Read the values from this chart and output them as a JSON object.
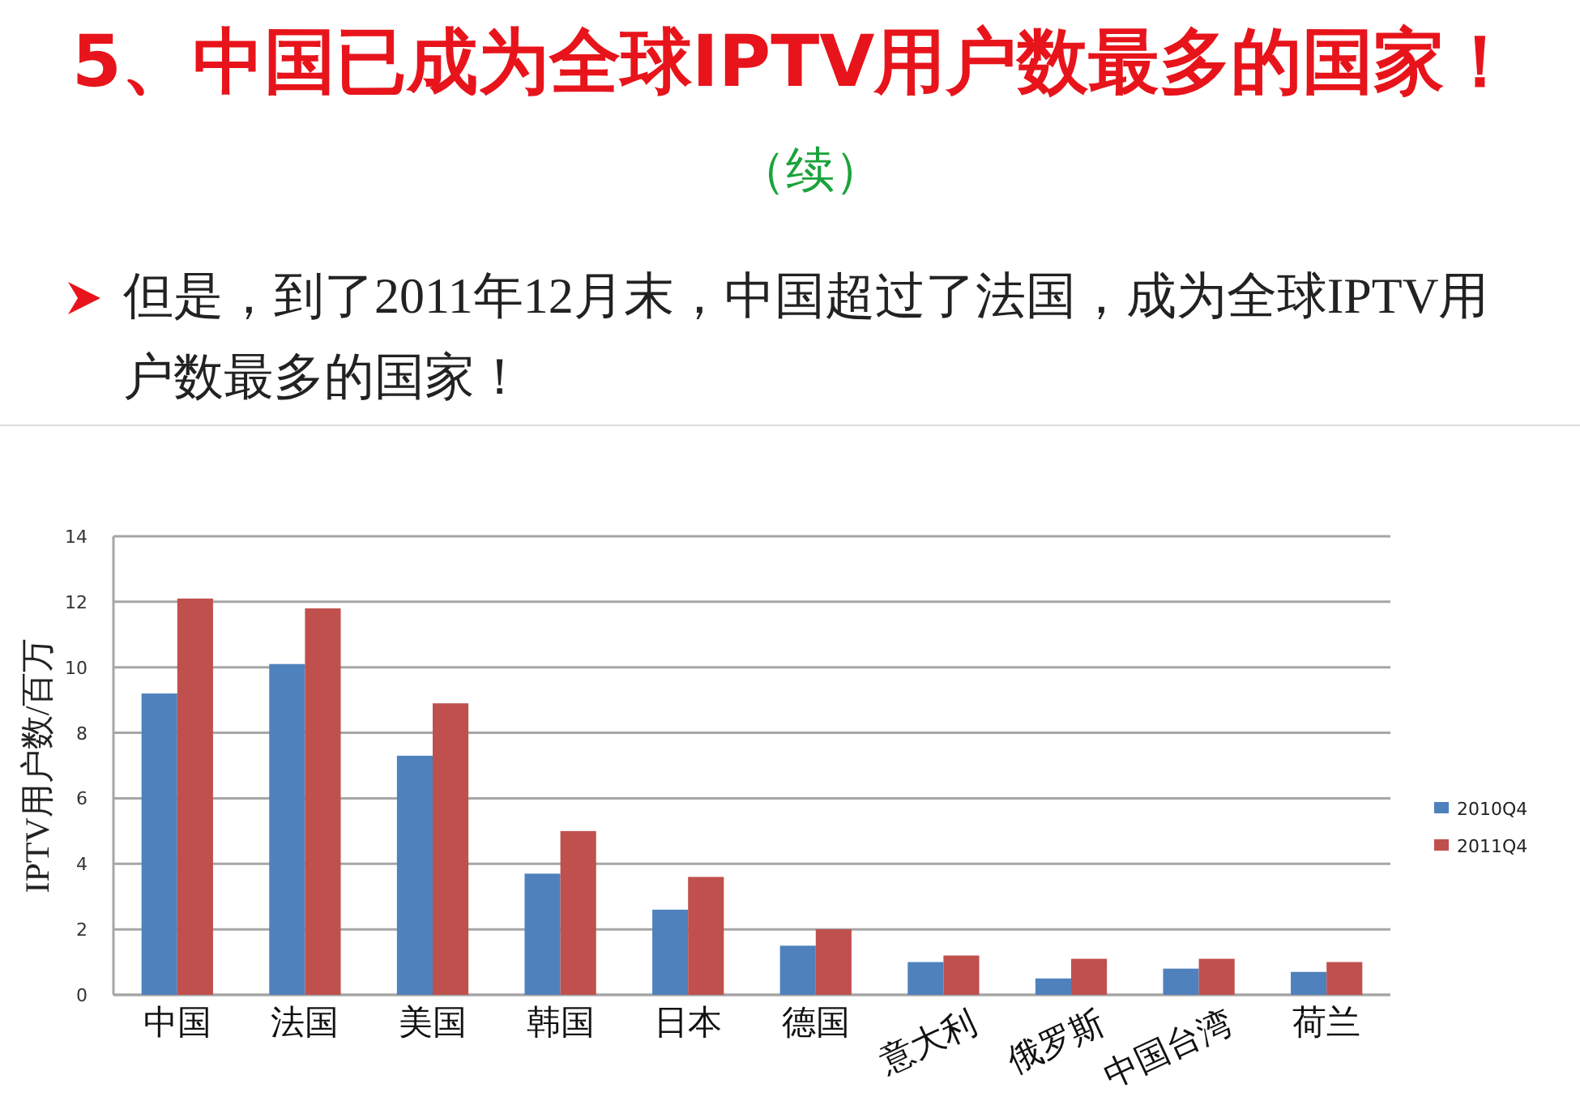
{
  "chart_data": {
    "type": "bar",
    "title": "5、中国已成为全球IPTV用户数最多的国家！",
    "annotations": [
      "（续）"
    ],
    "subtitle": "但是，到了2011年12月末，中国超过了法国，成为全球IPTV用户数最多的国家！",
    "ylabel": "IPTV用户数/百万",
    "categories": [
      "中国",
      "法国",
      "美国",
      "韩国",
      "日本",
      "德国",
      "意大利",
      "俄罗斯",
      "中国台湾",
      "荷兰"
    ],
    "series": [
      {
        "name": "2010Q4",
        "color": "#4f81bd",
        "values": [
          9.2,
          10.1,
          7.3,
          3.7,
          2.6,
          1.5,
          1.0,
          0.5,
          0.8,
          0.7
        ]
      },
      {
        "name": "2011Q4",
        "color": "#c0504d",
        "values": [
          12.1,
          11.8,
          8.9,
          5.0,
          3.6,
          2.0,
          1.2,
          1.1,
          1.1,
          1.0
        ]
      }
    ],
    "ylim": [
      0,
      14
    ],
    "yticks": [
      0,
      2,
      4,
      6,
      8,
      10,
      12,
      14
    ],
    "grid": "y",
    "legend": "right"
  }
}
